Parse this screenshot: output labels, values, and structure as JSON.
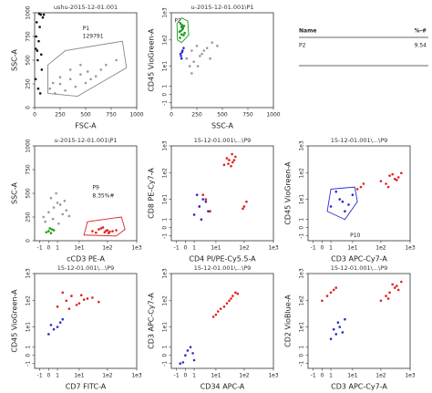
{
  "chart_data": [
    {
      "type": "scatter",
      "title": "ushu-2015-12-01.001",
      "xlabel": "FSC-A",
      "ylabel": "SSC-A",
      "xscale": "linear",
      "yscale": "linear",
      "xlim": [
        0,
        1000
      ],
      "ylim": [
        0,
        1000
      ],
      "xticks": [
        0,
        250,
        500,
        750,
        1000
      ],
      "yticks": [
        0,
        250,
        500,
        750,
        1000
      ],
      "series": [
        {
          "color": "#111111",
          "x": [
            20,
            40,
            30,
            60,
            10,
            50,
            80,
            25,
            70,
            15,
            45,
            90,
            35,
            55,
            12,
            65
          ],
          "y": [
            900,
            700,
            500,
            980,
            300,
            850,
            950,
            600,
            400,
            750,
            990,
            980,
            200,
            150,
            620,
            560
          ]
        },
        {
          "color": "#999999",
          "x": [
            150,
            250,
            350,
            450,
            550,
            650,
            300,
            400,
            500,
            200,
            600,
            700,
            800,
            350,
            450,
            250,
            180,
            520
          ],
          "y": [
            200,
            250,
            300,
            350,
            300,
            400,
            180,
            220,
            260,
            150,
            330,
            450,
            500,
            400,
            450,
            320,
            260,
            380
          ]
        }
      ],
      "gates": [
        {
          "color": "#888888",
          "points": [
            [
              130,
              150
            ],
            [
              420,
              120
            ],
            [
              900,
              420
            ],
            [
              860,
              700
            ],
            [
              300,
              600
            ],
            [
              130,
              450
            ]
          ]
        }
      ],
      "annotations": [
        {
          "text": "P1",
          "x": 470,
          "y": 830,
          "color": "#888888"
        },
        {
          "text": "129791",
          "x": 470,
          "y": 750,
          "color": "#888888"
        }
      ]
    },
    {
      "type": "scatter",
      "title": "u-2015-12-01.001\\P1",
      "xlabel": "SSC-A",
      "ylabel": "CD45 VioGreen-A",
      "xscale": "linear",
      "yscale": "logicle",
      "xlim": [
        0,
        1000
      ],
      "ylim": [
        -2,
        1000
      ],
      "xticks": [
        0,
        250,
        500,
        750,
        1000
      ],
      "yticks": [
        -1,
        0,
        1,
        {
          "value": 10,
          "label": "1e1"
        },
        {
          "value": 100,
          "label": "1e2"
        },
        {
          "value": 1000,
          "label": "1e3"
        }
      ],
      "series": [
        {
          "color": "#999999",
          "x": [
            150,
            200,
            250,
            300,
            350,
            400,
            180,
            220,
            280,
            320,
            260,
            200,
            450,
            380
          ],
          "y": [
            20,
            40,
            60,
            30,
            50,
            80,
            10,
            15,
            25,
            40,
            10,
            5,
            60,
            20
          ]
        },
        {
          "color": "#1a9a1a",
          "x": [
            80,
            100,
            120,
            90,
            110,
            130,
            85,
            105,
            95,
            115,
            125,
            100
          ],
          "y": [
            200,
            300,
            150,
            400,
            250,
            180,
            120,
            350,
            220,
            280,
            330,
            160
          ]
        },
        {
          "color": "#2a2ad0",
          "x": [
            90,
            110,
            100,
            120,
            95,
            105
          ],
          "y": [
            30,
            40,
            20,
            50,
            25,
            35
          ]
        }
      ],
      "gates": [
        {
          "color": "#1a9a1a",
          "points": [
            [
              60,
              100
            ],
            [
              100,
              80
            ],
            [
              170,
              150
            ],
            [
              160,
              500
            ],
            [
              100,
              650
            ],
            [
              55,
              400
            ]
          ]
        }
      ],
      "annotations": [
        {
          "text": "P2",
          "x": 30,
          "y": 500,
          "color": "#1a9a1a"
        }
      ]
    },
    {
      "type": "table",
      "columns": [
        "Name",
        "%-#"
      ],
      "rows": [
        [
          "P2",
          "9.54"
        ]
      ]
    },
    {
      "type": "scatter",
      "title": "u-2015-12-01.001\\P1",
      "xlabel": "cCD3 PE-A",
      "ylabel": "SSC-A",
      "xscale": "logicle",
      "yscale": "linear",
      "xlim": [
        -2,
        1000
      ],
      "ylim": [
        0,
        1000
      ],
      "xticks": [
        -1,
        0,
        1,
        {
          "value": 10,
          "label": "1e1"
        },
        {
          "value": 100,
          "label": "1e2"
        },
        {
          "value": 1000,
          "label": "1e3"
        }
      ],
      "yticks": [
        0,
        250,
        500,
        750,
        1000
      ],
      "series": [
        {
          "color": "#999999",
          "x": [
            -0.5,
            0,
            0.5,
            1,
            2,
            3,
            0.2,
            -0.3,
            1.5,
            4,
            0.8,
            2.5,
            1.2,
            0.4
          ],
          "y": [
            250,
            300,
            350,
            400,
            280,
            320,
            450,
            200,
            380,
            260,
            500,
            420,
            180,
            230
          ]
        },
        {
          "color": "#1a9a1a",
          "x": [
            0,
            0.3,
            -0.2,
            0.5,
            0.1,
            0.2
          ],
          "y": [
            100,
            120,
            90,
            110,
            130,
            80
          ]
        },
        {
          "color": "#e02020",
          "x": [
            30,
            50,
            80,
            100,
            150,
            60,
            40,
            120,
            70,
            90,
            200,
            110
          ],
          "y": [
            100,
            120,
            90,
            110,
            100,
            130,
            85,
            95,
            140,
            105,
            110,
            80
          ]
        }
      ],
      "gates": [
        {
          "color": "#e02020",
          "points": [
            [
              15,
              60
            ],
            [
              200,
              50
            ],
            [
              400,
              120
            ],
            [
              300,
              250
            ],
            [
              20,
              200
            ]
          ]
        }
      ],
      "annotations": [
        {
          "text": "P9",
          "x": 30,
          "y": 560,
          "color": "#e02020"
        },
        {
          "text": "8.35%#",
          "x": 30,
          "y": 470,
          "color": "#e02020"
        }
      ]
    },
    {
      "type": "scatter",
      "title": "15-12-01.001\\...\\P9",
      "xlabel": "CD4 PI/PE-Cy5.5-A",
      "ylabel": "CD8 PE-Cy7-A",
      "xscale": "logicle",
      "yscale": "logicle",
      "xlim": [
        -2,
        1000
      ],
      "ylim": [
        -2,
        1000
      ],
      "xticks": [
        -1,
        0,
        1,
        {
          "value": 10,
          "label": "1e1"
        },
        {
          "value": 100,
          "label": "1e2"
        },
        {
          "value": 1000,
          "label": "1e3"
        }
      ],
      "yticks": [
        -1,
        0,
        1,
        {
          "value": 10,
          "label": "1e1"
        },
        {
          "value": 100,
          "label": "1e2"
        },
        {
          "value": 1000,
          "label": "1e3"
        }
      ],
      "series": [
        {
          "color": "#e02020",
          "x": [
            20,
            30,
            40,
            50,
            25,
            35,
            45,
            28,
            38,
            2,
            4,
            6,
            3,
            100,
            120,
            90
          ],
          "y": [
            200,
            300,
            250,
            400,
            350,
            180,
            300,
            220,
            500,
            5,
            10,
            3,
            15,
            5,
            8,
            4
          ]
        },
        {
          "color": "#2a2ad0",
          "x": [
            1,
            2,
            3,
            5,
            1.5,
            2.5,
            4
          ],
          "y": [
            2,
            5,
            10,
            3,
            15,
            1,
            8
          ]
        }
      ]
    },
    {
      "type": "scatter",
      "title": "15-12-01.001\\...\\P9",
      "xlabel": "CD3 APC-Cy7-A",
      "ylabel": "CD45 VioGreen-A",
      "xscale": "logicle",
      "yscale": "logicle",
      "xlim": [
        -2,
        1000
      ],
      "ylim": [
        -2,
        1000
      ],
      "xticks": [
        -1,
        0,
        1,
        {
          "value": 10,
          "label": "1e1"
        },
        {
          "value": 100,
          "label": "1e2"
        },
        {
          "value": 1000,
          "label": "1e3"
        }
      ],
      "yticks": [
        -1,
        0,
        1,
        {
          "value": 10,
          "label": "1e1"
        },
        {
          "value": 100,
          "label": "1e2"
        },
        {
          "value": 1000,
          "label": "1e3"
        }
      ],
      "series": [
        {
          "color": "#e02020",
          "x": [
            100,
            200,
            300,
            500,
            150,
            250,
            400,
            180,
            350,
            20,
            25,
            15
          ],
          "y": [
            50,
            80,
            60,
            100,
            40,
            90,
            70,
            30,
            55,
            30,
            40,
            25
          ]
        },
        {
          "color": "#2a2ad0",
          "x": [
            1,
            3,
            5,
            10,
            2,
            4,
            7
          ],
          "y": [
            5,
            10,
            3,
            15,
            20,
            8,
            6
          ]
        }
      ],
      "gates": [
        {
          "color": "#2a2ad0",
          "points": [
            [
              0.5,
              3
            ],
            [
              5,
              1
            ],
            [
              15,
              8
            ],
            [
              12,
              30
            ],
            [
              1,
              25
            ]
          ]
        }
      ],
      "annotations": [
        {
          "text": "P10",
          "x": 8,
          "y": -1,
          "color": "#2a2ad0"
        }
      ]
    },
    {
      "type": "scatter",
      "title": "15-12-01.001\\...\\P9",
      "xlabel": "CD7 FITC-A",
      "ylabel": "CD45 VioGreen-A",
      "xscale": "logicle",
      "yscale": "logicle",
      "xlim": [
        -2,
        1000
      ],
      "ylim": [
        -2,
        1000
      ],
      "xticks": [
        -1,
        0,
        1,
        {
          "value": 10,
          "label": "1e1"
        },
        {
          "value": 100,
          "label": "1e2"
        },
        {
          "value": 1000,
          "label": "1e3"
        }
      ],
      "yticks": [
        -1,
        0,
        1,
        {
          "value": 10,
          "label": "1e1"
        },
        {
          "value": 100,
          "label": "1e2"
        },
        {
          "value": 1000,
          "label": "1e3"
        }
      ],
      "series": [
        {
          "color": "#e02020",
          "x": [
            1,
            3,
            5,
            10,
            20,
            50,
            2,
            8,
            15,
            30,
            4,
            12
          ],
          "y": [
            60,
            100,
            150,
            80,
            120,
            90,
            200,
            70,
            110,
            130,
            50,
            160
          ]
        },
        {
          "color": "#2a2ad0",
          "x": [
            0,
            1,
            2,
            0.5,
            1.5,
            0.2
          ],
          "y": [
            5,
            10,
            20,
            8,
            15,
            12
          ]
        }
      ]
    },
    {
      "type": "scatter",
      "title": "15-12-01.001\\...\\P9",
      "xlabel": "CD34 APC-A",
      "ylabel": "CD3 APC-Cy7-A",
      "xscale": "logicle",
      "yscale": "logicle",
      "xlim": [
        -2,
        1000
      ],
      "ylim": [
        -2,
        1000
      ],
      "xticks": [
        -1,
        0,
        1,
        {
          "value": 10,
          "label": "1e1"
        },
        {
          "value": 100,
          "label": "1e2"
        },
        {
          "value": 1000,
          "label": "1e3"
        }
      ],
      "yticks": [
        -1,
        0,
        1,
        {
          "value": 10,
          "label": "1e1"
        },
        {
          "value": 100,
          "label": "1e2"
        },
        {
          "value": 1000,
          "label": "1e3"
        }
      ],
      "series": [
        {
          "color": "#e02020",
          "x": [
            10,
            20,
            30,
            50,
            15,
            25,
            40,
            12,
            35,
            60,
            8
          ],
          "y": [
            30,
            60,
            100,
            200,
            50,
            80,
            150,
            40,
            120,
            180,
            25
          ]
        },
        {
          "color": "#2a2ad0",
          "x": [
            -0.5,
            0,
            0.5,
            1,
            0.2,
            -0.2,
            0.8
          ],
          "y": [
            -1,
            0,
            1,
            -0.5,
            0.5,
            -0.8,
            0.2
          ]
        }
      ]
    },
    {
      "type": "scatter",
      "title": "15-12-01.001\\...\\P9",
      "xlabel": "CD3 APC-Cy7-A",
      "ylabel": "CD2 VioBlue-A",
      "xscale": "logicle",
      "yscale": "logicle",
      "xlim": [
        -2,
        1000
      ],
      "ylim": [
        -2,
        1000
      ],
      "xticks": [
        -1,
        0,
        1,
        {
          "value": 10,
          "label": "1e1"
        },
        {
          "value": 100,
          "label": "1e2"
        },
        {
          "value": 1000,
          "label": "1e3"
        }
      ],
      "yticks": [
        -1,
        0,
        1,
        {
          "value": 10,
          "label": "1e1"
        },
        {
          "value": 100,
          "label": "1e2"
        },
        {
          "value": 1000,
          "label": "1e3"
        }
      ],
      "series": [
        {
          "color": "#e02020",
          "x": [
            100,
            200,
            300,
            500,
            150,
            250,
            400,
            180,
            350,
            0,
            1,
            2,
            0.5,
            1.5
          ],
          "y": [
            100,
            200,
            300,
            500,
            150,
            400,
            250,
            120,
            350,
            100,
            200,
            300,
            150,
            250
          ]
        },
        {
          "color": "#2a2ad0",
          "x": [
            1,
            2,
            3,
            5,
            1.5,
            2.5,
            4
          ],
          "y": [
            3,
            5,
            10,
            20,
            8,
            15,
            6
          ]
        }
      ]
    }
  ]
}
